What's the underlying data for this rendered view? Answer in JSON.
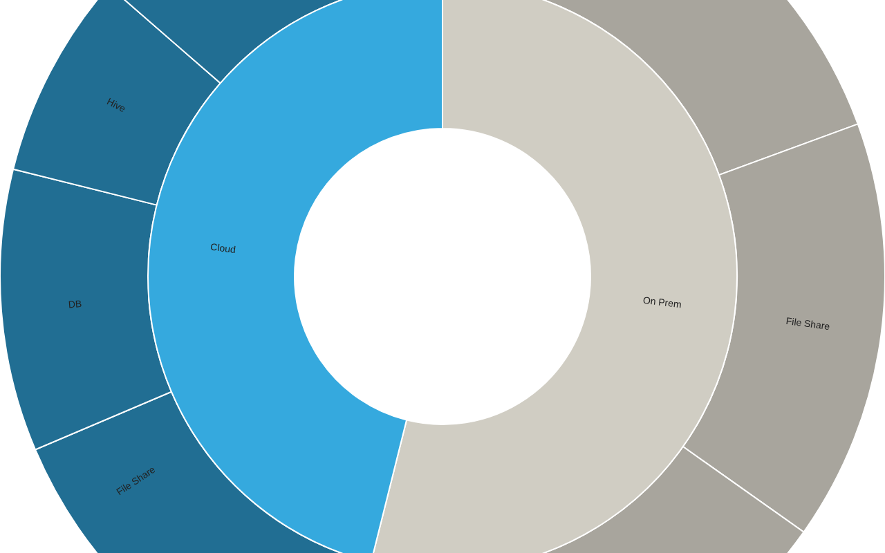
{
  "chart_data": [
    {
      "type": "donut",
      "categories": [
        "On Prem",
        "Cloud"
      ],
      "values": [
        53.9,
        46.1
      ],
      "colors": [
        "#d0cdc3",
        "#35a9de"
      ]
    },
    {
      "type": "donut",
      "categories": [
        null,
        "File Share",
        null,
        "File Share",
        "DB",
        "Hive",
        null
      ],
      "values": [
        19.4,
        15.4,
        19.1,
        14.7,
        10.3,
        7.5,
        13.6
      ],
      "colors": [
        "#a8a59d",
        "#a8a59d",
        "#a8a59d",
        "#216e93",
        "#216e93",
        "#216e93",
        "#216e93"
      ]
    }
  ]
}
